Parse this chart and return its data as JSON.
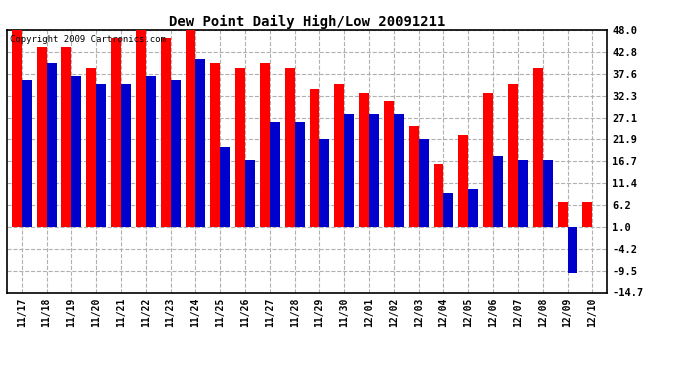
{
  "title": "Dew Point Daily High/Low 20091211",
  "copyright": "Copyright 2009 Cartronics.com",
  "dates": [
    "11/17",
    "11/18",
    "11/19",
    "11/20",
    "11/21",
    "11/22",
    "11/23",
    "11/24",
    "11/25",
    "11/26",
    "11/27",
    "11/28",
    "11/29",
    "11/30",
    "12/01",
    "12/02",
    "12/03",
    "12/04",
    "12/05",
    "12/06",
    "12/07",
    "12/08",
    "12/09",
    "12/10"
  ],
  "highs": [
    48,
    44,
    44,
    39,
    46,
    48,
    46,
    48,
    40,
    39,
    40,
    39,
    34,
    35,
    33,
    31,
    25,
    16,
    23,
    33,
    35,
    39,
    7,
    7
  ],
  "lows": [
    36,
    40,
    37,
    35,
    35,
    37,
    36,
    41,
    20,
    17,
    26,
    26,
    22,
    28,
    28,
    28,
    22,
    9,
    10,
    18,
    17,
    17,
    -10,
    1
  ],
  "high_color": "#ff0000",
  "low_color": "#0000cc",
  "bg_color": "#ffffff",
  "plot_bg": "#ffffff",
  "grid_color": "#b0b0b0",
  "yticks": [
    48.0,
    42.8,
    37.6,
    32.3,
    27.1,
    21.9,
    16.7,
    11.4,
    6.2,
    1.0,
    -4.2,
    -9.5,
    -14.7
  ],
  "ymin": -14.7,
  "ymax": 48.0,
  "bar_width": 0.4,
  "figwidth": 6.9,
  "figheight": 3.75,
  "dpi": 100
}
